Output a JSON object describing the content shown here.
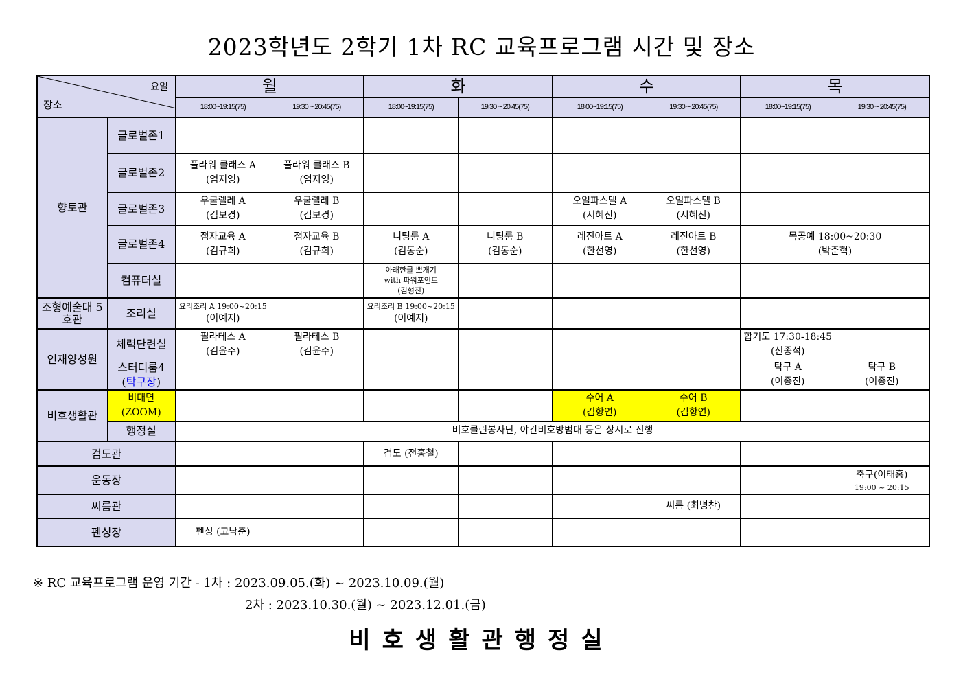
{
  "title": "2023학년도 2학기 1차 RC 교육프로그램 시간 및 장소",
  "header": {
    "corner_top": "요일",
    "corner_bottom": "장소",
    "days": [
      "월",
      "화",
      "수",
      "목"
    ],
    "times": [
      "18:00~19:15(75)",
      "19:30 ~ 20:45(75)",
      "18:00~19:15(75)",
      "19:30 ~ 20:45(75)",
      "18:00~19:15(75)",
      "19:30 ~ 20:45(75)",
      "18:00~19:15(75)",
      "19:30 ~ 20:45(75)"
    ]
  },
  "rows": [
    {
      "group": "향토관",
      "group_span": 5,
      "place": [
        "글로벌존1"
      ],
      "cells": [
        [],
        [],
        [],
        [],
        [],
        [],
        [],
        []
      ]
    },
    {
      "place": [
        "글로벌존2"
      ],
      "cells": [
        [
          "플라워 클래스 A",
          "(엄지영)"
        ],
        [
          "플라워 클래스 B",
          "(엄지영)"
        ],
        [],
        [],
        [],
        [],
        [],
        []
      ]
    },
    {
      "place": [
        "글로벌존3"
      ],
      "cells": [
        [
          "우쿨렐레 A",
          "(김보경)"
        ],
        [
          "우쿨렐레 B",
          "(김보경)"
        ],
        [],
        [],
        [
          "오일파스텔 A",
          "(시혜진)"
        ],
        [
          "오일파스텔 B",
          "(시혜진)"
        ],
        [],
        []
      ]
    },
    {
      "place": [
        "글로벌존4"
      ],
      "cells": [
        [
          "점자교육 A",
          "(김규희)"
        ],
        [
          "점자교육 B",
          "(김규희)"
        ],
        [
          "니팅룸 A",
          "(김동순)"
        ],
        [
          "니팅룸 B",
          "(김동순)"
        ],
        [
          "레진아트 A",
          "(한선영)"
        ],
        [
          "레진아트 B",
          "(한선영)"
        ],
        {
          "span": 2,
          "lines": [
            "목공예  18:00~20:30",
            "(박준혁)"
          ]
        }
      ]
    },
    {
      "place": [
        "컴퓨터실"
      ],
      "cells": [
        [],
        [],
        {
          "small": true,
          "lines": [
            "아래한글 뽀개기",
            "with 파워포인트",
            "(김형진)"
          ]
        },
        [],
        [],
        [],
        [],
        []
      ]
    },
    {
      "group": "조형예술대 5호관",
      "group_span": 1,
      "place": [
        "조리실"
      ],
      "cells": [
        {
          "small": true,
          "lines": [
            "요리조리 A 19:00~20:15"
          ],
          "sub": "(이예지)"
        },
        [],
        {
          "small": true,
          "lines": [
            "요리조리 B 19:00~20:15"
          ],
          "sub": "(이예지)"
        },
        [],
        [],
        [],
        [],
        []
      ]
    },
    {
      "group": "인재양성원",
      "group_span": 2,
      "place": [
        "체력단련실"
      ],
      "cells": [
        [
          "필라테스 A",
          "(김윤주)"
        ],
        [
          "필라테스 B",
          "(김윤주)"
        ],
        [],
        [],
        [],
        [],
        [
          "합기도 17:30-18:45",
          "(신종석)"
        ],
        []
      ]
    },
    {
      "place": [
        "스터디룸4",
        "(탁구장)"
      ],
      "place_blue": "탁구장",
      "cells": [
        [],
        [],
        [],
        [],
        [],
        [],
        [
          "탁구 A",
          "(이종진)"
        ],
        [
          "탁구 B",
          "(이종진)"
        ]
      ]
    },
    {
      "group": "비호생활관",
      "group_span": 2,
      "place": [
        "비대면",
        "(ZOOM)"
      ],
      "place_hl": true,
      "cells": [
        [],
        [],
        [],
        [],
        {
          "hl": true,
          "lines": [
            "수어 A",
            "(김항연)"
          ]
        },
        {
          "hl": true,
          "lines": [
            "수어 B",
            "(김항연)"
          ]
        },
        [],
        []
      ]
    },
    {
      "place": [
        "행정실"
      ],
      "cells": [
        {
          "span": 8,
          "lines": [
            "비호클린봉사단, 야간비호방범대 등은 상시로 진행"
          ]
        }
      ]
    },
    {
      "group": "검도관",
      "group_span": 1,
      "full": true,
      "cells": [
        [],
        [],
        [
          "검도 (전홍철)"
        ],
        [],
        [],
        [],
        [],
        []
      ]
    },
    {
      "group": "운동장",
      "group_span": 1,
      "full": true,
      "cells": [
        [],
        [],
        [],
        [],
        [],
        [],
        [],
        {
          "lines": [
            "축구(이태홍)"
          ],
          "subsmall": "19:00 ~ 20:15"
        }
      ]
    },
    {
      "group": "씨름관",
      "group_span": 1,
      "full": true,
      "cells": [
        [],
        [],
        [],
        [],
        [],
        [
          "씨름 (최병찬)"
        ],
        [],
        []
      ]
    },
    {
      "group": "펜싱장",
      "group_span": 1,
      "full": true,
      "cells": [
        [
          "펜싱 (고낙춘)"
        ],
        [],
        [],
        [],
        [],
        [],
        [],
        []
      ]
    }
  ],
  "colors": {
    "header_bg": "#d9d9f0",
    "highlight": "#ffff00",
    "accent_text": "#0000ee"
  },
  "notes": {
    "line1": "※ RC 교육프로그램 운영 기간 - 1차 : 2023.09.05.(화) ~ 2023.10.09.(월)",
    "line2": "2차 : 2023.10.30.(월) ~ 2023.12.01.(금)"
  },
  "footer": "비호생활관행정실"
}
